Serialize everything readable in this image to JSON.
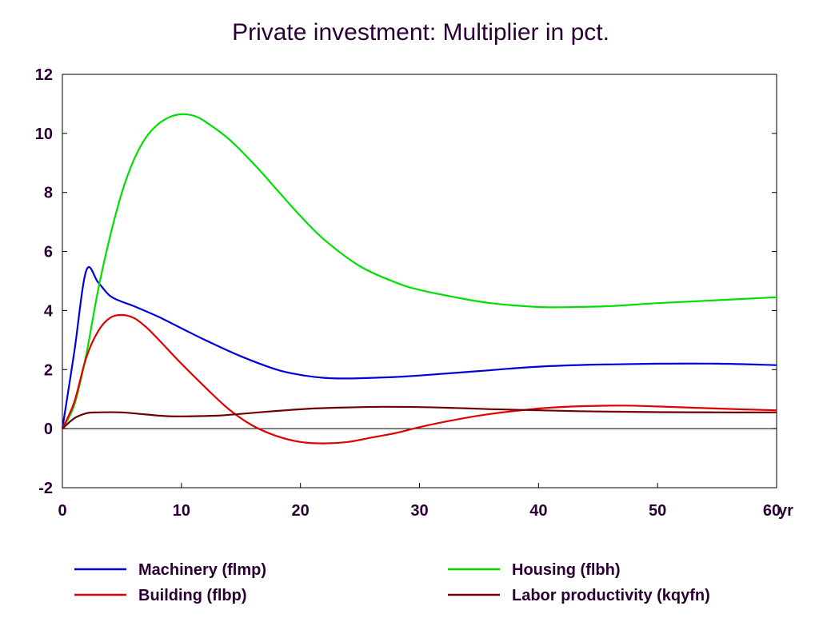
{
  "chart_data": {
    "type": "line",
    "title": "Private investment: Multiplier in pct.",
    "xlabel": "",
    "ylabel": "",
    "x_unit_label": "yr",
    "xlim": [
      0,
      60
    ],
    "ylim": [
      -2,
      12
    ],
    "x_ticks": [
      0,
      10,
      20,
      30,
      40,
      50,
      60
    ],
    "x_tick_labels": [
      "0",
      "10",
      "20",
      "30",
      "40",
      "50",
      "60"
    ],
    "y_ticks": [
      -2,
      0,
      2,
      4,
      6,
      8,
      10,
      12
    ],
    "y_tick_labels": [
      "-2",
      "0",
      "2",
      "4",
      "6",
      "8",
      "10",
      "12"
    ],
    "grid": false,
    "zero_line": true,
    "legend_position": "bottom",
    "series": [
      {
        "name": "Machinery (flmp)",
        "color": "#0000dd",
        "x": [
          0,
          1,
          2,
          3,
          4,
          5,
          6,
          8,
          10,
          12,
          15,
          18,
          20,
          22,
          24,
          26,
          28,
          30,
          35,
          40,
          45,
          50,
          55,
          60
        ],
        "y": [
          0,
          2.6,
          5.35,
          4.95,
          4.5,
          4.3,
          4.15,
          3.8,
          3.4,
          3.0,
          2.45,
          2.0,
          1.82,
          1.72,
          1.7,
          1.72,
          1.75,
          1.8,
          1.95,
          2.1,
          2.17,
          2.2,
          2.2,
          2.15
        ]
      },
      {
        "name": "Housing (flbh)",
        "color": "#00e000",
        "x": [
          0,
          1,
          2,
          3,
          4,
          5,
          6,
          7,
          8,
          9,
          10,
          11,
          12,
          14,
          16,
          18,
          20,
          22,
          25,
          28,
          30,
          33,
          36,
          40,
          43,
          46,
          50,
          55,
          60
        ],
        "y": [
          0,
          0.8,
          2.5,
          4.7,
          6.5,
          8.0,
          9.1,
          9.85,
          10.3,
          10.55,
          10.65,
          10.6,
          10.4,
          9.8,
          9.0,
          8.1,
          7.2,
          6.4,
          5.5,
          4.95,
          4.7,
          4.45,
          4.25,
          4.12,
          4.12,
          4.15,
          4.25,
          4.35,
          4.45
        ]
      },
      {
        "name": "Building (flbp)",
        "color": "#e00000",
        "x": [
          0,
          1,
          2,
          3,
          4,
          5,
          6,
          7,
          8,
          10,
          12,
          14,
          16,
          18,
          20,
          22,
          24,
          26,
          28,
          30,
          33,
          36,
          40,
          43,
          47,
          50,
          55,
          60
        ],
        "y": [
          0,
          0.9,
          2.4,
          3.3,
          3.75,
          3.85,
          3.75,
          3.45,
          3.05,
          2.2,
          1.4,
          0.65,
          0.1,
          -0.25,
          -0.45,
          -0.5,
          -0.45,
          -0.3,
          -0.15,
          0.05,
          0.3,
          0.5,
          0.68,
          0.75,
          0.78,
          0.75,
          0.68,
          0.62
        ]
      },
      {
        "name": "Labor productivity (kqyfn)",
        "color": "#700000",
        "x": [
          0,
          1,
          2,
          3,
          5,
          7,
          9,
          11,
          13,
          15,
          18,
          21,
          24,
          27,
          30,
          33,
          36,
          40,
          45,
          50,
          55,
          60
        ],
        "y": [
          0,
          0.35,
          0.52,
          0.55,
          0.55,
          0.48,
          0.42,
          0.42,
          0.44,
          0.5,
          0.6,
          0.68,
          0.72,
          0.74,
          0.73,
          0.7,
          0.66,
          0.62,
          0.58,
          0.56,
          0.55,
          0.55
        ]
      }
    ]
  }
}
